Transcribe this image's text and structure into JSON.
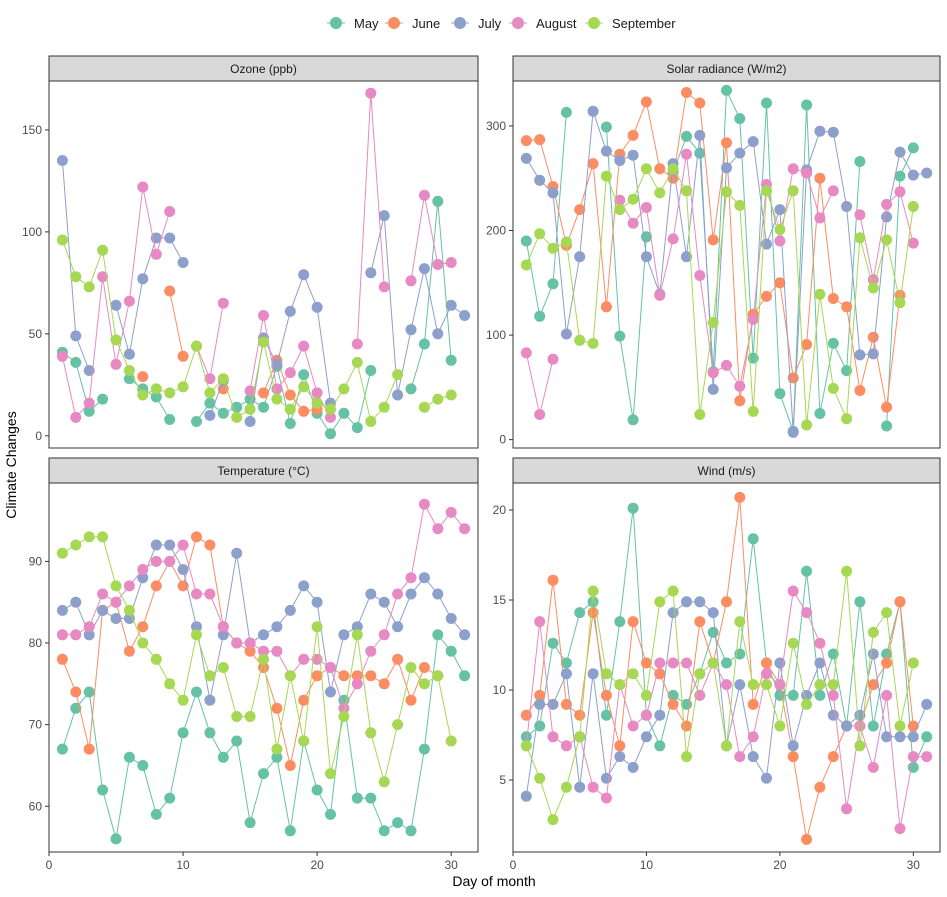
{
  "legend": {
    "entries": [
      {
        "name": "May",
        "color": "#66C2A5"
      },
      {
        "name": "June",
        "color": "#FC8D62"
      },
      {
        "name": "July",
        "color": "#8DA0CB"
      },
      {
        "name": "August",
        "color": "#E78AC3"
      },
      {
        "name": "September",
        "color": "#A6D854"
      }
    ],
    "placement": "top-center"
  },
  "axis": {
    "xlabel": "Day of month",
    "ylabel": "Climate Changes",
    "x_ticks": [
      "0",
      "10",
      "20",
      "30"
    ]
  },
  "chart_data": [
    {
      "type": "line",
      "title": "Ozone (ppb)",
      "x": [
        1,
        2,
        3,
        4,
        5,
        6,
        7,
        8,
        9,
        10,
        11,
        12,
        13,
        14,
        15,
        16,
        17,
        18,
        19,
        20,
        21,
        22,
        23,
        24,
        25,
        26,
        27,
        28,
        29,
        30,
        31
      ],
      "xlim": [
        0,
        32
      ],
      "ylim": [
        -6,
        174
      ],
      "yticks": [
        0,
        50,
        100,
        150
      ],
      "grid": false,
      "series": [
        {
          "name": "May",
          "values": [
            41,
            36,
            12,
            18,
            null,
            28,
            23,
            19,
            8,
            null,
            7,
            16,
            11,
            14,
            18,
            14,
            34,
            6,
            30,
            11,
            1,
            11,
            4,
            32,
            null,
            null,
            23,
            45,
            115,
            37,
            null
          ]
        },
        {
          "name": "June",
          "values": [
            null,
            null,
            null,
            null,
            null,
            null,
            29,
            null,
            71,
            39,
            null,
            null,
            23,
            null,
            null,
            21,
            37,
            20,
            12,
            13,
            null,
            null,
            null,
            null,
            null,
            null,
            null,
            null,
            null,
            null,
            null
          ]
        },
        {
          "name": "July",
          "values": [
            135,
            49,
            32,
            null,
            64,
            40,
            77,
            97,
            97,
            85,
            null,
            10,
            27,
            null,
            7,
            48,
            35,
            61,
            79,
            63,
            16,
            null,
            null,
            80,
            108,
            20,
            52,
            82,
            50,
            64,
            59
          ]
        },
        {
          "name": "August",
          "values": [
            39,
            9,
            16,
            78,
            35,
            66,
            122,
            89,
            110,
            null,
            44,
            28,
            65,
            null,
            22,
            59,
            23,
            31,
            44,
            21,
            9,
            null,
            45,
            168,
            73,
            null,
            76,
            118,
            84,
            85,
            null
          ]
        },
        {
          "name": "September",
          "values": [
            96,
            78,
            73,
            91,
            47,
            32,
            20,
            23,
            21,
            24,
            44,
            21,
            28,
            9,
            13,
            46,
            18,
            13,
            24,
            16,
            13,
            23,
            36,
            7,
            14,
            30,
            null,
            14,
            18,
            20,
            null
          ]
        }
      ]
    },
    {
      "type": "line",
      "title": "Solar radiance (W/m2)",
      "x": [
        1,
        2,
        3,
        4,
        5,
        6,
        7,
        8,
        9,
        10,
        11,
        12,
        13,
        14,
        15,
        16,
        17,
        18,
        19,
        20,
        21,
        22,
        23,
        24,
        25,
        26,
        27,
        28,
        29,
        30,
        31
      ],
      "xlim": [
        0,
        32
      ],
      "ylim": [
        -8,
        343
      ],
      "yticks": [
        0,
        100,
        200,
        300
      ],
      "grid": false,
      "series": [
        {
          "name": "May",
          "values": [
            190,
            118,
            149,
            313,
            null,
            null,
            299,
            99,
            19,
            194,
            null,
            256,
            290,
            274,
            65,
            334,
            307,
            78,
            322,
            44,
            8,
            320,
            25,
            92,
            66,
            266,
            null,
            13,
            252,
            279,
            null
          ]
        },
        {
          "name": "June",
          "values": [
            286,
            287,
            242,
            186,
            220,
            264,
            127,
            273,
            291,
            323,
            259,
            250,
            332,
            322,
            191,
            284,
            37,
            120,
            137,
            150,
            59,
            91,
            250,
            135,
            127,
            47,
            98,
            31,
            138,
            null,
            null
          ]
        },
        {
          "name": "July",
          "values": [
            269,
            248,
            236,
            101,
            175,
            314,
            276,
            267,
            272,
            175,
            139,
            264,
            175,
            291,
            48,
            260,
            274,
            285,
            187,
            220,
            7,
            258,
            295,
            294,
            223,
            81,
            82,
            213,
            275,
            253,
            255
          ]
        },
        {
          "name": "August",
          "values": [
            83,
            24,
            77,
            null,
            null,
            null,
            null,
            229,
            207,
            222,
            138,
            192,
            273,
            157,
            64,
            71,
            51,
            115,
            244,
            190,
            259,
            255,
            212,
            238,
            null,
            215,
            153,
            225,
            237,
            188,
            null
          ]
        },
        {
          "name": "September",
          "values": [
            167,
            197,
            183,
            189,
            95,
            92,
            252,
            220,
            230,
            259,
            236,
            259,
            238,
            24,
            112,
            237,
            224,
            27,
            238,
            201,
            238,
            14,
            139,
            49,
            20,
            193,
            145,
            191,
            131,
            223,
            null
          ]
        }
      ]
    },
    {
      "type": "line",
      "title": "Temperature (°C)",
      "x": [
        1,
        2,
        3,
        4,
        5,
        6,
        7,
        8,
        9,
        10,
        11,
        12,
        13,
        14,
        15,
        16,
        17,
        18,
        19,
        20,
        21,
        22,
        23,
        24,
        25,
        26,
        27,
        28,
        29,
        30,
        31
      ],
      "xlim": [
        0,
        32
      ],
      "ylim": [
        54.4,
        99.6
      ],
      "yticks": [
        60,
        70,
        80,
        90
      ],
      "grid": false,
      "series": [
        {
          "name": "May",
          "values": [
            67,
            72,
            74,
            62,
            56,
            66,
            65,
            59,
            61,
            69,
            74,
            69,
            66,
            68,
            58,
            64,
            66,
            57,
            68,
            62,
            59,
            73,
            61,
            61,
            57,
            58,
            57,
            67,
            81,
            79,
            76
          ]
        },
        {
          "name": "June",
          "values": [
            78,
            74,
            67,
            84,
            85,
            79,
            82,
            87,
            90,
            87,
            93,
            92,
            82,
            80,
            79,
            77,
            72,
            65,
            73,
            76,
            77,
            76,
            76,
            76,
            75,
            78,
            73,
            77,
            76,
            null,
            null
          ]
        },
        {
          "name": "July",
          "values": [
            84,
            85,
            81,
            84,
            83,
            83,
            88,
            92,
            92,
            89,
            82,
            73,
            81,
            91,
            80,
            81,
            82,
            84,
            87,
            85,
            74,
            81,
            82,
            86,
            85,
            82,
            86,
            88,
            86,
            83,
            81
          ]
        },
        {
          "name": "August",
          "values": [
            81,
            81,
            82,
            86,
            85,
            87,
            89,
            90,
            90,
            92,
            86,
            86,
            82,
            80,
            80,
            79,
            79,
            76,
            78,
            78,
            77,
            72,
            75,
            79,
            81,
            86,
            88,
            97,
            94,
            96,
            94
          ]
        },
        {
          "name": "September",
          "values": [
            91,
            92,
            93,
            93,
            87,
            84,
            80,
            78,
            75,
            73,
            81,
            76,
            77,
            71,
            71,
            78,
            67,
            76,
            68,
            82,
            64,
            71,
            81,
            69,
            63,
            70,
            77,
            75,
            76,
            68,
            null
          ]
        }
      ]
    },
    {
      "type": "line",
      "title": "Wind (m/s)",
      "x": [
        1,
        2,
        3,
        4,
        5,
        6,
        7,
        8,
        9,
        10,
        11,
        12,
        13,
        14,
        15,
        16,
        17,
        18,
        19,
        20,
        21,
        22,
        23,
        24,
        25,
        26,
        27,
        28,
        29,
        30,
        31
      ],
      "xlim": [
        0,
        32
      ],
      "ylim": [
        1.0,
        21.5
      ],
      "yticks": [
        5,
        10,
        15,
        20
      ],
      "grid": false,
      "series": [
        {
          "name": "May",
          "values": [
            7.4,
            8.0,
            12.6,
            11.5,
            14.3,
            14.9,
            8.6,
            13.8,
            20.1,
            8.6,
            6.9,
            9.7,
            9.2,
            10.9,
            13.2,
            11.5,
            12.0,
            18.4,
            11.5,
            9.7,
            9.7,
            16.6,
            9.7,
            12.0,
            8.0,
            14.9,
            8.0,
            12.0,
            14.9,
            5.7,
            7.4
          ]
        },
        {
          "name": "June",
          "values": [
            8.6,
            9.7,
            16.1,
            9.2,
            8.6,
            14.3,
            9.7,
            6.9,
            13.8,
            11.5,
            10.9,
            9.2,
            8.0,
            13.8,
            11.5,
            14.9,
            20.7,
            9.2,
            11.5,
            10.3,
            6.3,
            1.7,
            4.6,
            6.3,
            8.0,
            8.0,
            10.3,
            11.5,
            14.9,
            8.0,
            null
          ]
        },
        {
          "name": "July",
          "values": [
            4.1,
            9.2,
            9.2,
            10.9,
            4.6,
            10.9,
            5.1,
            6.3,
            5.7,
            7.4,
            8.6,
            14.3,
            14.9,
            14.9,
            14.3,
            6.9,
            10.3,
            6.3,
            5.1,
            11.5,
            6.9,
            9.7,
            11.5,
            8.6,
            8.0,
            8.6,
            12.0,
            7.4,
            7.4,
            7.4,
            9.2
          ]
        },
        {
          "name": "August",
          "values": [
            6.9,
            13.8,
            7.4,
            6.9,
            7.4,
            4.6,
            4.0,
            10.3,
            8.0,
            8.6,
            11.5,
            11.5,
            11.5,
            9.7,
            11.5,
            10.3,
            6.3,
            7.4,
            10.9,
            10.3,
            15.5,
            14.3,
            12.6,
            9.7,
            3.4,
            8.0,
            5.7,
            9.7,
            2.3,
            6.3,
            6.3
          ]
        },
        {
          "name": "September",
          "values": [
            6.9,
            5.1,
            2.8,
            4.6,
            7.4,
            15.5,
            10.9,
            10.3,
            10.9,
            9.7,
            14.9,
            15.5,
            6.3,
            10.9,
            11.5,
            6.9,
            13.8,
            10.3,
            10.3,
            8.0,
            12.6,
            9.2,
            10.3,
            10.3,
            16.6,
            6.9,
            13.2,
            14.3,
            8.0,
            11.5,
            null
          ]
        }
      ]
    }
  ]
}
